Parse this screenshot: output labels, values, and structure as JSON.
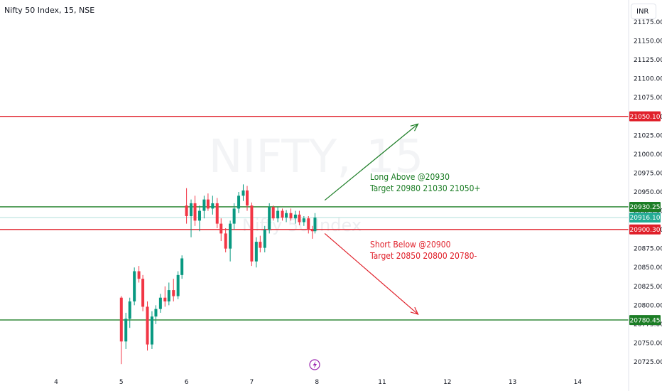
{
  "header": {
    "symbol_title": "Nifty 50 Index, 15, NSE"
  },
  "currency": "INR",
  "watermark": {
    "big": "NIFTY, 15",
    "small": "Nifty 50 Index"
  },
  "colors": {
    "up": "#089981",
    "down": "#f23645",
    "green_line": "#1b7d25",
    "red_line": "#e0202a",
    "current_line": "#b2dfdb",
    "current_badge": "#22ab94",
    "green_badge": "#1b7d25",
    "red_badge": "#e0202a",
    "event_icon": "#9c27b0"
  },
  "chart_data": {
    "type": "candlestick",
    "title": "Nifty 50 Index, 15, NSE",
    "ylim": [
      20715,
      21190
    ],
    "y_ticks": [
      "21175.00",
      "21150.00",
      "21125.00",
      "21100.00",
      "21075.00",
      "21050.00",
      "21025.00",
      "21000.00",
      "20975.00",
      "20950.00",
      "20925.00",
      "20900.00",
      "20875.00",
      "20850.00",
      "20825.00",
      "20800.00",
      "20775.00",
      "20750.00",
      "20725.00"
    ],
    "x_ticks": [
      "4",
      "5",
      "6",
      "7",
      "8",
      "11",
      "12",
      "13",
      "14"
    ],
    "horizontal_levels": [
      {
        "value": 21050.1,
        "label": "21050.10",
        "color": "red"
      },
      {
        "value": 20930.25,
        "label": "20930.25",
        "color": "green"
      },
      {
        "value": 20900.3,
        "label": "20900.30",
        "color": "red"
      },
      {
        "value": 20780.45,
        "label": "20780.45",
        "color": "green"
      }
    ],
    "current_price": {
      "value": 20916.1,
      "label": "20916.10"
    },
    "candles": [
      {
        "day": 5.0,
        "o": 20810,
        "h": 20812,
        "l": 20722,
        "c": 20752
      },
      {
        "day": 5.07,
        "o": 20752,
        "h": 20790,
        "l": 20742,
        "c": 20782
      },
      {
        "day": 5.13,
        "o": 20782,
        "h": 20810,
        "l": 20770,
        "c": 20805
      },
      {
        "day": 5.2,
        "o": 20805,
        "h": 20850,
        "l": 20800,
        "c": 20845
      },
      {
        "day": 5.27,
        "o": 20845,
        "h": 20852,
        "l": 20830,
        "c": 20835
      },
      {
        "day": 5.33,
        "o": 20835,
        "h": 20840,
        "l": 20792,
        "c": 20798
      },
      {
        "day": 5.4,
        "o": 20798,
        "h": 20805,
        "l": 20740,
        "c": 20748
      },
      {
        "day": 5.47,
        "o": 20748,
        "h": 20792,
        "l": 20742,
        "c": 20785
      },
      {
        "day": 5.53,
        "o": 20785,
        "h": 20800,
        "l": 20775,
        "c": 20795
      },
      {
        "day": 5.6,
        "o": 20795,
        "h": 20815,
        "l": 20790,
        "c": 20810
      },
      {
        "day": 5.67,
        "o": 20810,
        "h": 20825,
        "l": 20798,
        "c": 20805
      },
      {
        "day": 5.73,
        "o": 20805,
        "h": 20830,
        "l": 20800,
        "c": 20820
      },
      {
        "day": 5.8,
        "o": 20820,
        "h": 20835,
        "l": 20805,
        "c": 20812
      },
      {
        "day": 5.87,
        "o": 20812,
        "h": 20845,
        "l": 20808,
        "c": 20840
      },
      {
        "day": 5.93,
        "o": 20840,
        "h": 20866,
        "l": 20835,
        "c": 20862
      },
      {
        "day": 6.0,
        "o": 20932,
        "h": 20955,
        "l": 20908,
        "c": 20918
      },
      {
        "day": 6.07,
        "o": 20918,
        "h": 20940,
        "l": 20890,
        "c": 20935
      },
      {
        "day": 6.13,
        "o": 20935,
        "h": 20945,
        "l": 20905,
        "c": 20912
      },
      {
        "day": 6.2,
        "o": 20912,
        "h": 20932,
        "l": 20898,
        "c": 20925
      },
      {
        "day": 6.27,
        "o": 20925,
        "h": 20945,
        "l": 20915,
        "c": 20940
      },
      {
        "day": 6.33,
        "o": 20940,
        "h": 20948,
        "l": 20925,
        "c": 20928
      },
      {
        "day": 6.4,
        "o": 20928,
        "h": 20945,
        "l": 20920,
        "c": 20935
      },
      {
        "day": 6.47,
        "o": 20935,
        "h": 20942,
        "l": 20902,
        "c": 20908
      },
      {
        "day": 6.53,
        "o": 20908,
        "h": 20915,
        "l": 20885,
        "c": 20895
      },
      {
        "day": 6.6,
        "o": 20895,
        "h": 20902,
        "l": 20870,
        "c": 20875
      },
      {
        "day": 6.67,
        "o": 20875,
        "h": 20912,
        "l": 20858,
        "c": 20908
      },
      {
        "day": 6.73,
        "o": 20908,
        "h": 20935,
        "l": 20900,
        "c": 20928
      },
      {
        "day": 6.8,
        "o": 20928,
        "h": 20950,
        "l": 20922,
        "c": 20945
      },
      {
        "day": 6.87,
        "o": 20945,
        "h": 20960,
        "l": 20938,
        "c": 20952
      },
      {
        "day": 6.93,
        "o": 20952,
        "h": 20958,
        "l": 20925,
        "c": 20932
      },
      {
        "day": 7.0,
        "o": 20932,
        "h": 20936,
        "l": 20852,
        "c": 20858
      },
      {
        "day": 7.07,
        "o": 20858,
        "h": 20890,
        "l": 20850,
        "c": 20884
      },
      {
        "day": 7.13,
        "o": 20884,
        "h": 20892,
        "l": 20870,
        "c": 20876
      },
      {
        "day": 7.2,
        "o": 20876,
        "h": 20905,
        "l": 20870,
        "c": 20900
      },
      {
        "day": 7.27,
        "o": 20900,
        "h": 20935,
        "l": 20895,
        "c": 20930
      },
      {
        "day": 7.33,
        "o": 20930,
        "h": 20932,
        "l": 20912,
        "c": 20915
      },
      {
        "day": 7.4,
        "o": 20915,
        "h": 20930,
        "l": 20910,
        "c": 20925
      },
      {
        "day": 7.47,
        "o": 20925,
        "h": 20928,
        "l": 20912,
        "c": 20916
      },
      {
        "day": 7.53,
        "o": 20916,
        "h": 20926,
        "l": 20910,
        "c": 20922
      },
      {
        "day": 7.6,
        "o": 20922,
        "h": 20928,
        "l": 20912,
        "c": 20915
      },
      {
        "day": 7.67,
        "o": 20915,
        "h": 20925,
        "l": 20908,
        "c": 20920
      },
      {
        "day": 7.73,
        "o": 20920,
        "h": 20925,
        "l": 20906,
        "c": 20910
      },
      {
        "day": 7.8,
        "o": 20910,
        "h": 20918,
        "l": 20905,
        "c": 20915
      },
      {
        "day": 7.87,
        "o": 20915,
        "h": 20918,
        "l": 20895,
        "c": 20900
      },
      {
        "day": 7.93,
        "o": 20900,
        "h": 20905,
        "l": 20888,
        "c": 20898
      },
      {
        "day": 7.97,
        "o": 20898,
        "h": 20922,
        "l": 20895,
        "c": 20916
      }
    ],
    "annotations": [
      {
        "text": "Long Above @20930",
        "color": "green"
      },
      {
        "text": "Target 20980 21030 21050+",
        "color": "green"
      },
      {
        "text": "Short Below @20900",
        "color": "red"
      },
      {
        "text": "Target 20850 20800 20780-",
        "color": "red"
      }
    ],
    "arrows": [
      {
        "name": "long-arrow",
        "from": {
          "day": 8.12,
          "price": 20939
        },
        "to": {
          "day": 9.55,
          "price": 21040
        },
        "color": "green"
      },
      {
        "name": "short-arrow",
        "from": {
          "day": 8.12,
          "price": 20895
        },
        "to": {
          "day": 9.55,
          "price": 20788
        },
        "color": "red"
      }
    ]
  }
}
